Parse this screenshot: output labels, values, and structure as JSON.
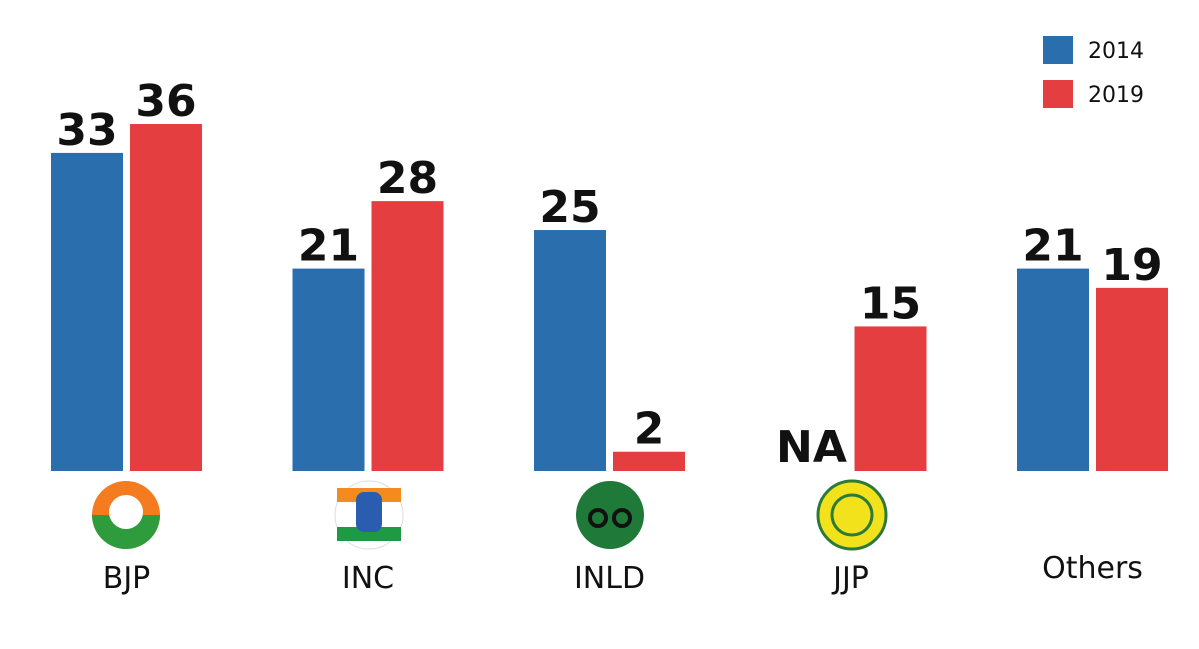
{
  "chart_data": {
    "type": "bar",
    "categories": [
      "BJP",
      "INC",
      "INLD",
      "JJP",
      "Others"
    ],
    "series": [
      {
        "name": "2014",
        "color": "#2b6ead",
        "values": [
          33,
          21,
          25,
          null,
          21
        ],
        "value_labels": [
          "33",
          "21",
          "25",
          "NA",
          "21"
        ]
      },
      {
        "name": "2019",
        "color": "#e43e40",
        "values": [
          36,
          28,
          2,
          15,
          19
        ]
      }
    ],
    "legend": "top-right"
  }
}
